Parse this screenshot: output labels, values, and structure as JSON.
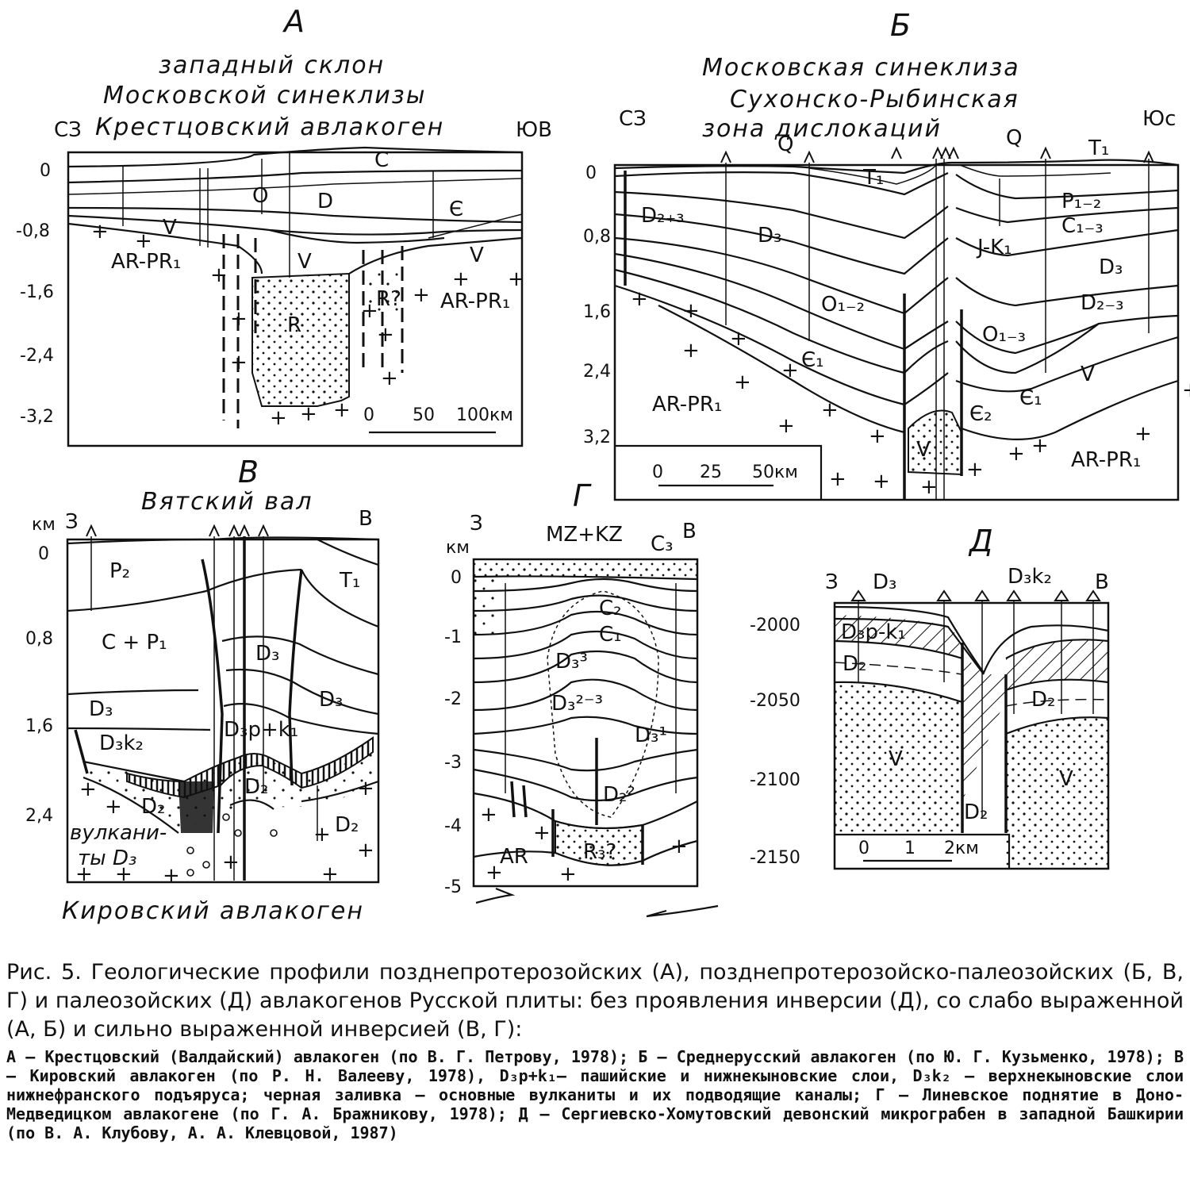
{
  "panelA": {
    "letter": "А",
    "title1": "западный склон",
    "title2": "Московской синеклизы",
    "title3": "Крестцовский авлакоген",
    "left_dir": "СЗ",
    "right_dir": "ЮВ",
    "depth_ticks": [
      "0",
      "-0,8",
      "-1,6",
      "-2,4",
      "-3,2"
    ],
    "labels": [
      "C",
      "O",
      "D",
      "Є",
      "V",
      "V",
      "V",
      "AR-PR₁",
      "AR-PR₁",
      "R",
      "R?"
    ],
    "scale": [
      "0",
      "50",
      "100км"
    ]
  },
  "panelB": {
    "letter": "Б",
    "title1": "Московская синеклиза",
    "title2": "Сухонско-Рыбинская",
    "title3": "зона дислокаций",
    "left_dir": "СЗ",
    "right_dir": "Юс",
    "depth_ticks": [
      "0",
      "0,8",
      "1,6",
      "2,4",
      "3,2"
    ],
    "labels": [
      "Q",
      "Q",
      "T₁",
      "T₁",
      "D₂₊₃",
      "D₃",
      "D₃",
      "O₁₋₂",
      "O₁₋₃",
      "Є₁",
      "Є₁",
      "Є₂",
      "P₁₋₂",
      "C₁₋₃",
      "J-K₁",
      "D₂₋₃",
      "V",
      "V",
      "AR-PR₁",
      "AR-PR₁"
    ],
    "scale": [
      "0",
      "25",
      "50км"
    ]
  },
  "panelV": {
    "letter": "В",
    "title": "Вятский вал",
    "left_dir": "З",
    "right_dir": "В",
    "unit": "км",
    "depth_ticks": [
      "0",
      "0,8",
      "1,6",
      "2,4"
    ],
    "labels": [
      "P₂",
      "C + P₁",
      "T₁",
      "D₃",
      "D₃",
      "D₃",
      "D₃k₂",
      "D₃p+k₁",
      "D₂",
      "D₂",
      "D₂",
      "вулкани-",
      "ты D₃"
    ],
    "bottom": "Кировский авлакоген"
  },
  "panelG": {
    "letter": "Г",
    "left_dir": "З",
    "right_dir": "В",
    "unit": "км",
    "depth_ticks": [
      "0",
      "-1",
      "-2",
      "-3",
      "-4",
      "-5"
    ],
    "labels": [
      "MZ+KZ",
      "C₃",
      "C₂",
      "C₁",
      "D₃³",
      "D₃²⁻³",
      "D₃¹",
      "D₂²",
      "R₃?",
      "AR"
    ]
  },
  "panelD": {
    "letter": "Д",
    "left_dir": "З",
    "right_dir": "В",
    "depth_ticks": [
      "-2000",
      "-2050",
      "-2100",
      "-2150"
    ],
    "labels": [
      "D₃",
      "D₃k₂",
      "D₃p-k₁",
      "D₂",
      "D₂",
      "D₂",
      "V",
      "V"
    ],
    "scale": [
      "0",
      "1",
      "2км"
    ]
  },
  "caption": {
    "main": "Рис. 5. Геологические профили позднепротерозойских (А), позднепротерозойско-палеозойских (Б, В, Г) и палеозойских (Д) авлакогенов Русской плиты: без проявления инверсии (Д), со слабо выраженной (А, Б) и сильно выраженной инверсией (В, Г):",
    "sub": "А — Крестцовский (Валдайский) авлакоген (по В. Г. Петрову, 1978); Б — Среднерусский авлакоген (по Ю. Г. Кузьменко, 1978); В — Кировский авлакоген (по Р. Н. Валееву, 1978), D₃p+k₁— пашийские и нижнекыновские слои, D₃k₂ — верхнекыновские слои нижнефранского подъяруса; черная заливка — основные вулканиты и их подводящие каналы; Г — Линевское поднятие в Доно-Медведицком авлакогене (по Г. А. Бражникову, 1978); Д — Сергиевско-Хомутовский девонский микрограбен в западной Башкирии (по В. А. Клубову, А. А. Клевцовой, 1987)"
  }
}
